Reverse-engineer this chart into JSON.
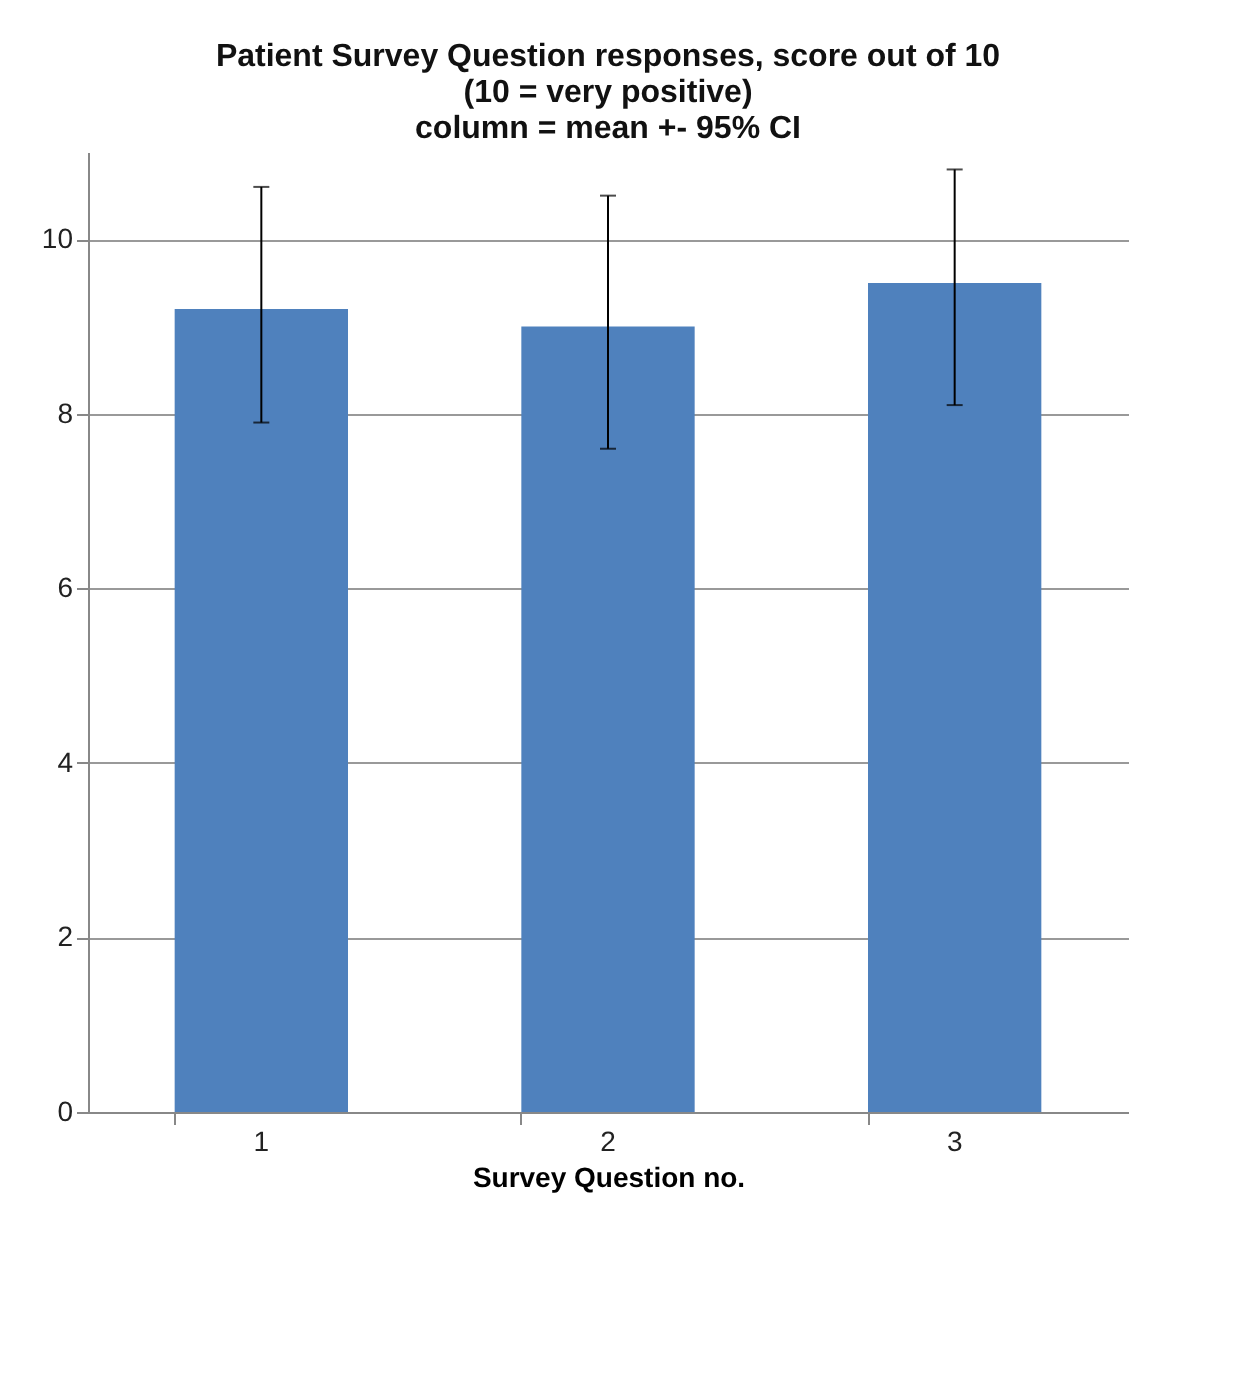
{
  "chart_data": {
    "type": "bar",
    "title": [
      "Patient Survey Question responses, score out of 10",
      "(10 = very positive)",
      "column = mean +- 95% CI"
    ],
    "xlabel": "Survey Question no.",
    "categories": [
      "1",
      "2",
      "3"
    ],
    "values": [
      9.2,
      9.0,
      9.5
    ],
    "errors": [
      [
        7.9,
        10.6
      ],
      [
        7.6,
        10.5
      ],
      [
        8.1,
        10.8
      ]
    ],
    "color": "#4f81bd",
    "ylim": [
      0,
      11
    ],
    "yticks": [
      0,
      2,
      4,
      6,
      8,
      10
    ],
    "grid": "y"
  }
}
